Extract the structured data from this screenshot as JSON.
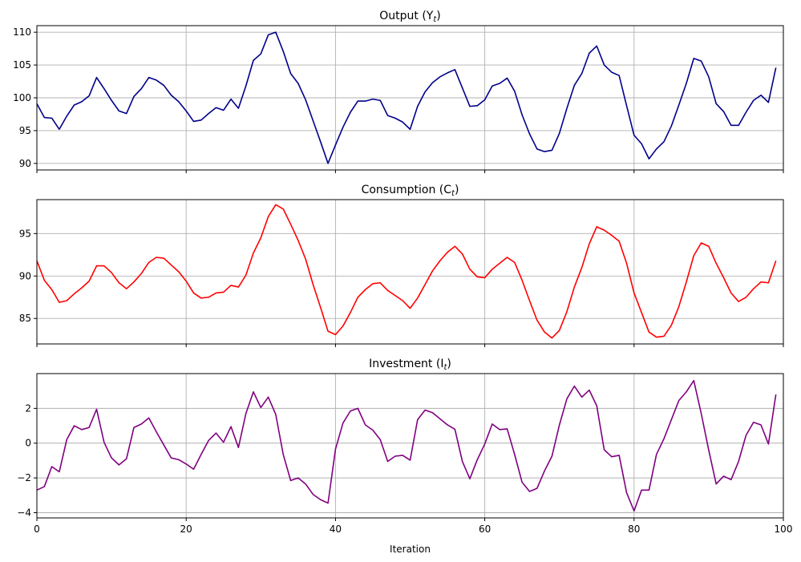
{
  "chart_data": [
    {
      "type": "line",
      "title": "Output (Y",
      "title_sub": "t",
      "title_close": ")",
      "color": "#00008b",
      "xlim": [
        0,
        100
      ],
      "ylim": [
        89,
        111
      ],
      "yticks": [
        90,
        95,
        100,
        105,
        110
      ],
      "xticks": [
        0,
        20,
        40,
        60,
        80,
        100
      ],
      "show_xtick_labels": false,
      "grid": true,
      "series": [
        {
          "values": [
            99.1,
            97.0,
            96.9,
            95.2,
            97.2,
            98.9,
            99.4,
            100.3,
            103.1,
            101.4,
            99.6,
            98.0,
            97.6,
            100.2,
            101.4,
            103.1,
            102.7,
            101.9,
            100.4,
            99.4,
            98.0,
            96.4,
            96.6,
            97.6,
            98.5,
            98.1,
            99.8,
            98.4,
            101.8,
            105.7,
            106.7,
            109.6,
            110.0,
            107.1,
            103.7,
            102.2,
            99.7,
            96.5,
            93.3,
            90.0,
            92.8,
            95.5,
            97.8,
            99.5,
            99.5,
            99.8,
            99.6,
            97.3,
            96.9,
            96.3,
            95.2,
            98.7,
            100.9,
            102.3,
            103.2,
            103.8,
            104.3,
            101.5,
            98.7,
            98.8,
            99.7,
            101.8,
            102.2,
            103.0,
            101.0,
            97.4,
            94.5,
            92.2,
            91.8,
            92.0,
            94.6,
            98.4,
            101.9,
            103.7,
            106.8,
            107.9,
            105.0,
            103.9,
            103.4,
            98.8,
            94.3,
            93.0,
            90.7,
            92.2,
            93.3,
            95.7,
            98.9,
            102.2,
            106.0,
            105.6,
            103.2,
            99.1,
            97.9,
            95.8,
            95.8,
            97.8,
            99.6,
            100.4,
            99.3,
            104.6
          ]
        }
      ]
    },
    {
      "type": "line",
      "title": "Consumption (C",
      "title_sub": "t",
      "title_close": ")",
      "color": "#ff0000",
      "xlim": [
        0,
        100
      ],
      "ylim": [
        82,
        99
      ],
      "yticks": [
        85,
        90,
        95
      ],
      "xticks": [
        0,
        20,
        40,
        60,
        80,
        100
      ],
      "show_xtick_labels": false,
      "grid": true,
      "series": [
        {
          "values": [
            91.8,
            89.5,
            88.4,
            86.9,
            87.1,
            87.9,
            88.6,
            89.4,
            91.2,
            91.2,
            90.4,
            89.2,
            88.5,
            89.3,
            90.3,
            91.6,
            92.2,
            92.1,
            91.3,
            90.5,
            89.4,
            88.0,
            87.4,
            87.5,
            88.0,
            88.1,
            88.9,
            88.7,
            90.1,
            92.7,
            94.5,
            97.0,
            98.4,
            97.9,
            96.1,
            94.2,
            92.0,
            89.0,
            86.3,
            83.5,
            83.1,
            84.1,
            85.7,
            87.5,
            88.4,
            89.1,
            89.2,
            88.3,
            87.7,
            87.1,
            86.2,
            87.4,
            89.0,
            90.6,
            91.8,
            92.8,
            93.5,
            92.6,
            90.8,
            89.9,
            89.8,
            90.8,
            91.5,
            92.2,
            91.6,
            89.5,
            87.1,
            84.8,
            83.4,
            82.7,
            83.6,
            85.8,
            88.7,
            91.0,
            93.8,
            95.8,
            95.4,
            94.8,
            94.1,
            91.5,
            88.0,
            85.7,
            83.4,
            82.8,
            82.9,
            84.2,
            86.4,
            89.3,
            92.4,
            93.9,
            93.5,
            91.5,
            89.8,
            88.0,
            87.0,
            87.5,
            88.5,
            89.3,
            89.2,
            91.8
          ]
        }
      ]
    },
    {
      "type": "line",
      "title": "Investment (I",
      "title_sub": "t",
      "title_close": ")",
      "color": "#800080",
      "xlim": [
        0,
        100
      ],
      "ylim": [
        -4.3,
        4.0
      ],
      "yticks": [
        -4,
        -2,
        0,
        2
      ],
      "xticks": [
        0,
        20,
        40,
        60,
        80,
        100
      ],
      "show_xtick_labels": true,
      "xlabel": "Iteration",
      "grid": true,
      "series": [
        {
          "values": [
            -2.7,
            -2.5,
            -1.35,
            -1.65,
            0.2,
            1.0,
            0.78,
            0.9,
            1.95,
            0.05,
            -0.85,
            -1.25,
            -0.9,
            0.9,
            1.1,
            1.45,
            0.65,
            -0.1,
            -0.85,
            -0.95,
            -1.2,
            -1.5,
            -0.65,
            0.15,
            0.58,
            0.05,
            0.95,
            -0.25,
            1.7,
            2.95,
            2.05,
            2.65,
            1.65,
            -0.65,
            -2.15,
            -2.0,
            -2.35,
            -2.95,
            -3.25,
            -3.45,
            -0.35,
            1.15,
            1.85,
            2.0,
            1.05,
            0.75,
            0.2,
            -1.05,
            -0.75,
            -0.7,
            -0.98,
            1.35,
            1.9,
            1.75,
            1.4,
            1.05,
            0.8,
            -1.05,
            -2.05,
            -0.95,
            -0.05,
            1.1,
            0.78,
            0.82,
            -0.65,
            -2.25,
            -2.78,
            -2.6,
            -1.6,
            -0.75,
            1.05,
            2.55,
            3.28,
            2.65,
            3.05,
            2.15,
            -0.38,
            -0.78,
            -0.7,
            -2.85,
            -3.9,
            -2.7,
            -2.7,
            -0.65,
            0.25,
            1.35,
            2.45,
            2.95,
            3.6,
            1.7,
            -0.4,
            -2.35,
            -1.9,
            -2.1,
            -1.05,
            0.45,
            1.2,
            1.05,
            -0.05,
            2.8
          ]
        }
      ]
    }
  ]
}
